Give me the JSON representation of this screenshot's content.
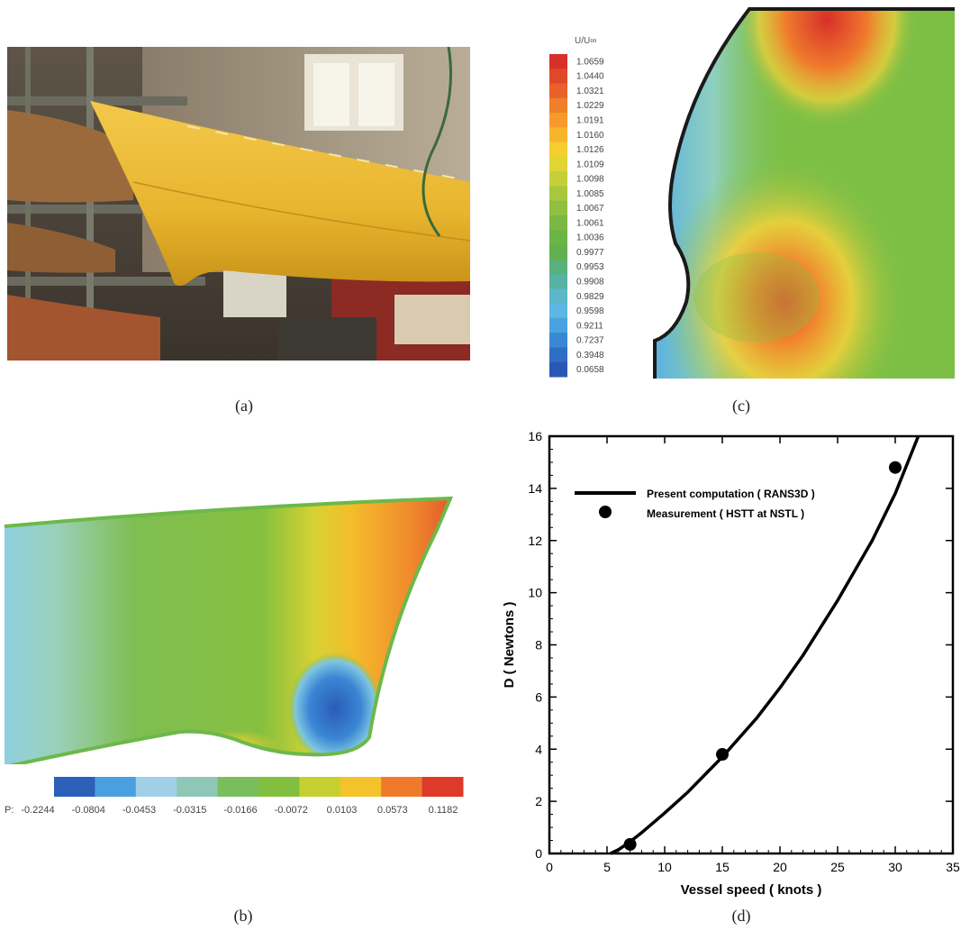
{
  "captions": {
    "a": "(a)",
    "b": "(b)",
    "c": "(c)",
    "d": "(d)"
  },
  "panel_c": {
    "legend_title": "U/U∞",
    "legend_labels": [
      "1.0659",
      "1.0440",
      "1.0321",
      "1.0229",
      "1.0191",
      "1.0160",
      "1.0126",
      "1.0109",
      "1.0098",
      "1.0085",
      "1.0067",
      "1.0061",
      "1.0036",
      "0.9977",
      "0.9953",
      "0.9908",
      "0.9829",
      "0.9598",
      "0.9211",
      "0.7237",
      "0.3948",
      "0.0658"
    ],
    "legend_colors": [
      "#d7302a",
      "#e0482a",
      "#e8602a",
      "#f07f2a",
      "#f59a2b",
      "#f8b52c",
      "#f4cf2e",
      "#dfd537",
      "#c4d03a",
      "#a7c83e",
      "#8fc040",
      "#7bb843",
      "#6db446",
      "#62b04f",
      "#5ab07a",
      "#56b2a3",
      "#5bb7c9",
      "#5eb6e2",
      "#4aa2e0",
      "#3a88d4",
      "#2f6ec6",
      "#2b57b4"
    ]
  },
  "panel_b": {
    "label_prefix": "P:",
    "colorbar_labels": [
      "-0.2244",
      "-0.0804",
      "-0.0453",
      "-0.0315",
      "-0.0166",
      "-0.0072",
      "0.0103",
      "0.0573",
      "0.1182"
    ],
    "colorbar_colors": [
      "#2b5fb8",
      "#4aa0de",
      "#9fd0e6",
      "#8fc7b7",
      "#79bd5d",
      "#82bf3f",
      "#c4d030",
      "#f4c22a",
      "#f07a2c",
      "#dd3a2a"
    ]
  },
  "chart_data": {
    "type": "line",
    "xlabel": "Vessel  speed ( knots )",
    "ylabel": "D  ( Newtons )",
    "xlim": [
      0,
      35
    ],
    "ylim": [
      0,
      16
    ],
    "xticks": [
      0,
      5,
      10,
      15,
      20,
      25,
      30,
      35
    ],
    "yticks": [
      0,
      2,
      4,
      6,
      8,
      10,
      12,
      14,
      16
    ],
    "legend_placement": "top-left",
    "series": [
      {
        "name": "Present computation ( RANS3D )",
        "type": "line",
        "x": [
          5.3,
          6,
          7,
          8,
          10,
          12,
          15,
          18,
          20,
          22,
          25,
          28,
          30,
          32
        ],
        "y": [
          0,
          0.15,
          0.45,
          0.8,
          1.55,
          2.35,
          3.7,
          5.2,
          6.35,
          7.6,
          9.7,
          12.0,
          13.8,
          16.0
        ]
      },
      {
        "name": "Measurement ( HSTT at NSTL )",
        "type": "scatter",
        "x": [
          7,
          15,
          30
        ],
        "y": [
          0.35,
          3.8,
          14.8
        ]
      }
    ]
  }
}
